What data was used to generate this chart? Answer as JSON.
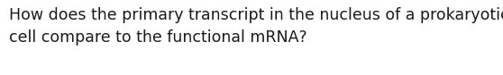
{
  "lines": [
    "How does the primary transcript in the nucleus of a prokaryotic",
    "cell compare to the functional mRNA?"
  ],
  "background_color": "#ffffff",
  "text_color": "#1a1a1a",
  "font_size": 12.5,
  "fig_width": 5.58,
  "fig_height": 0.84,
  "dpi": 100
}
